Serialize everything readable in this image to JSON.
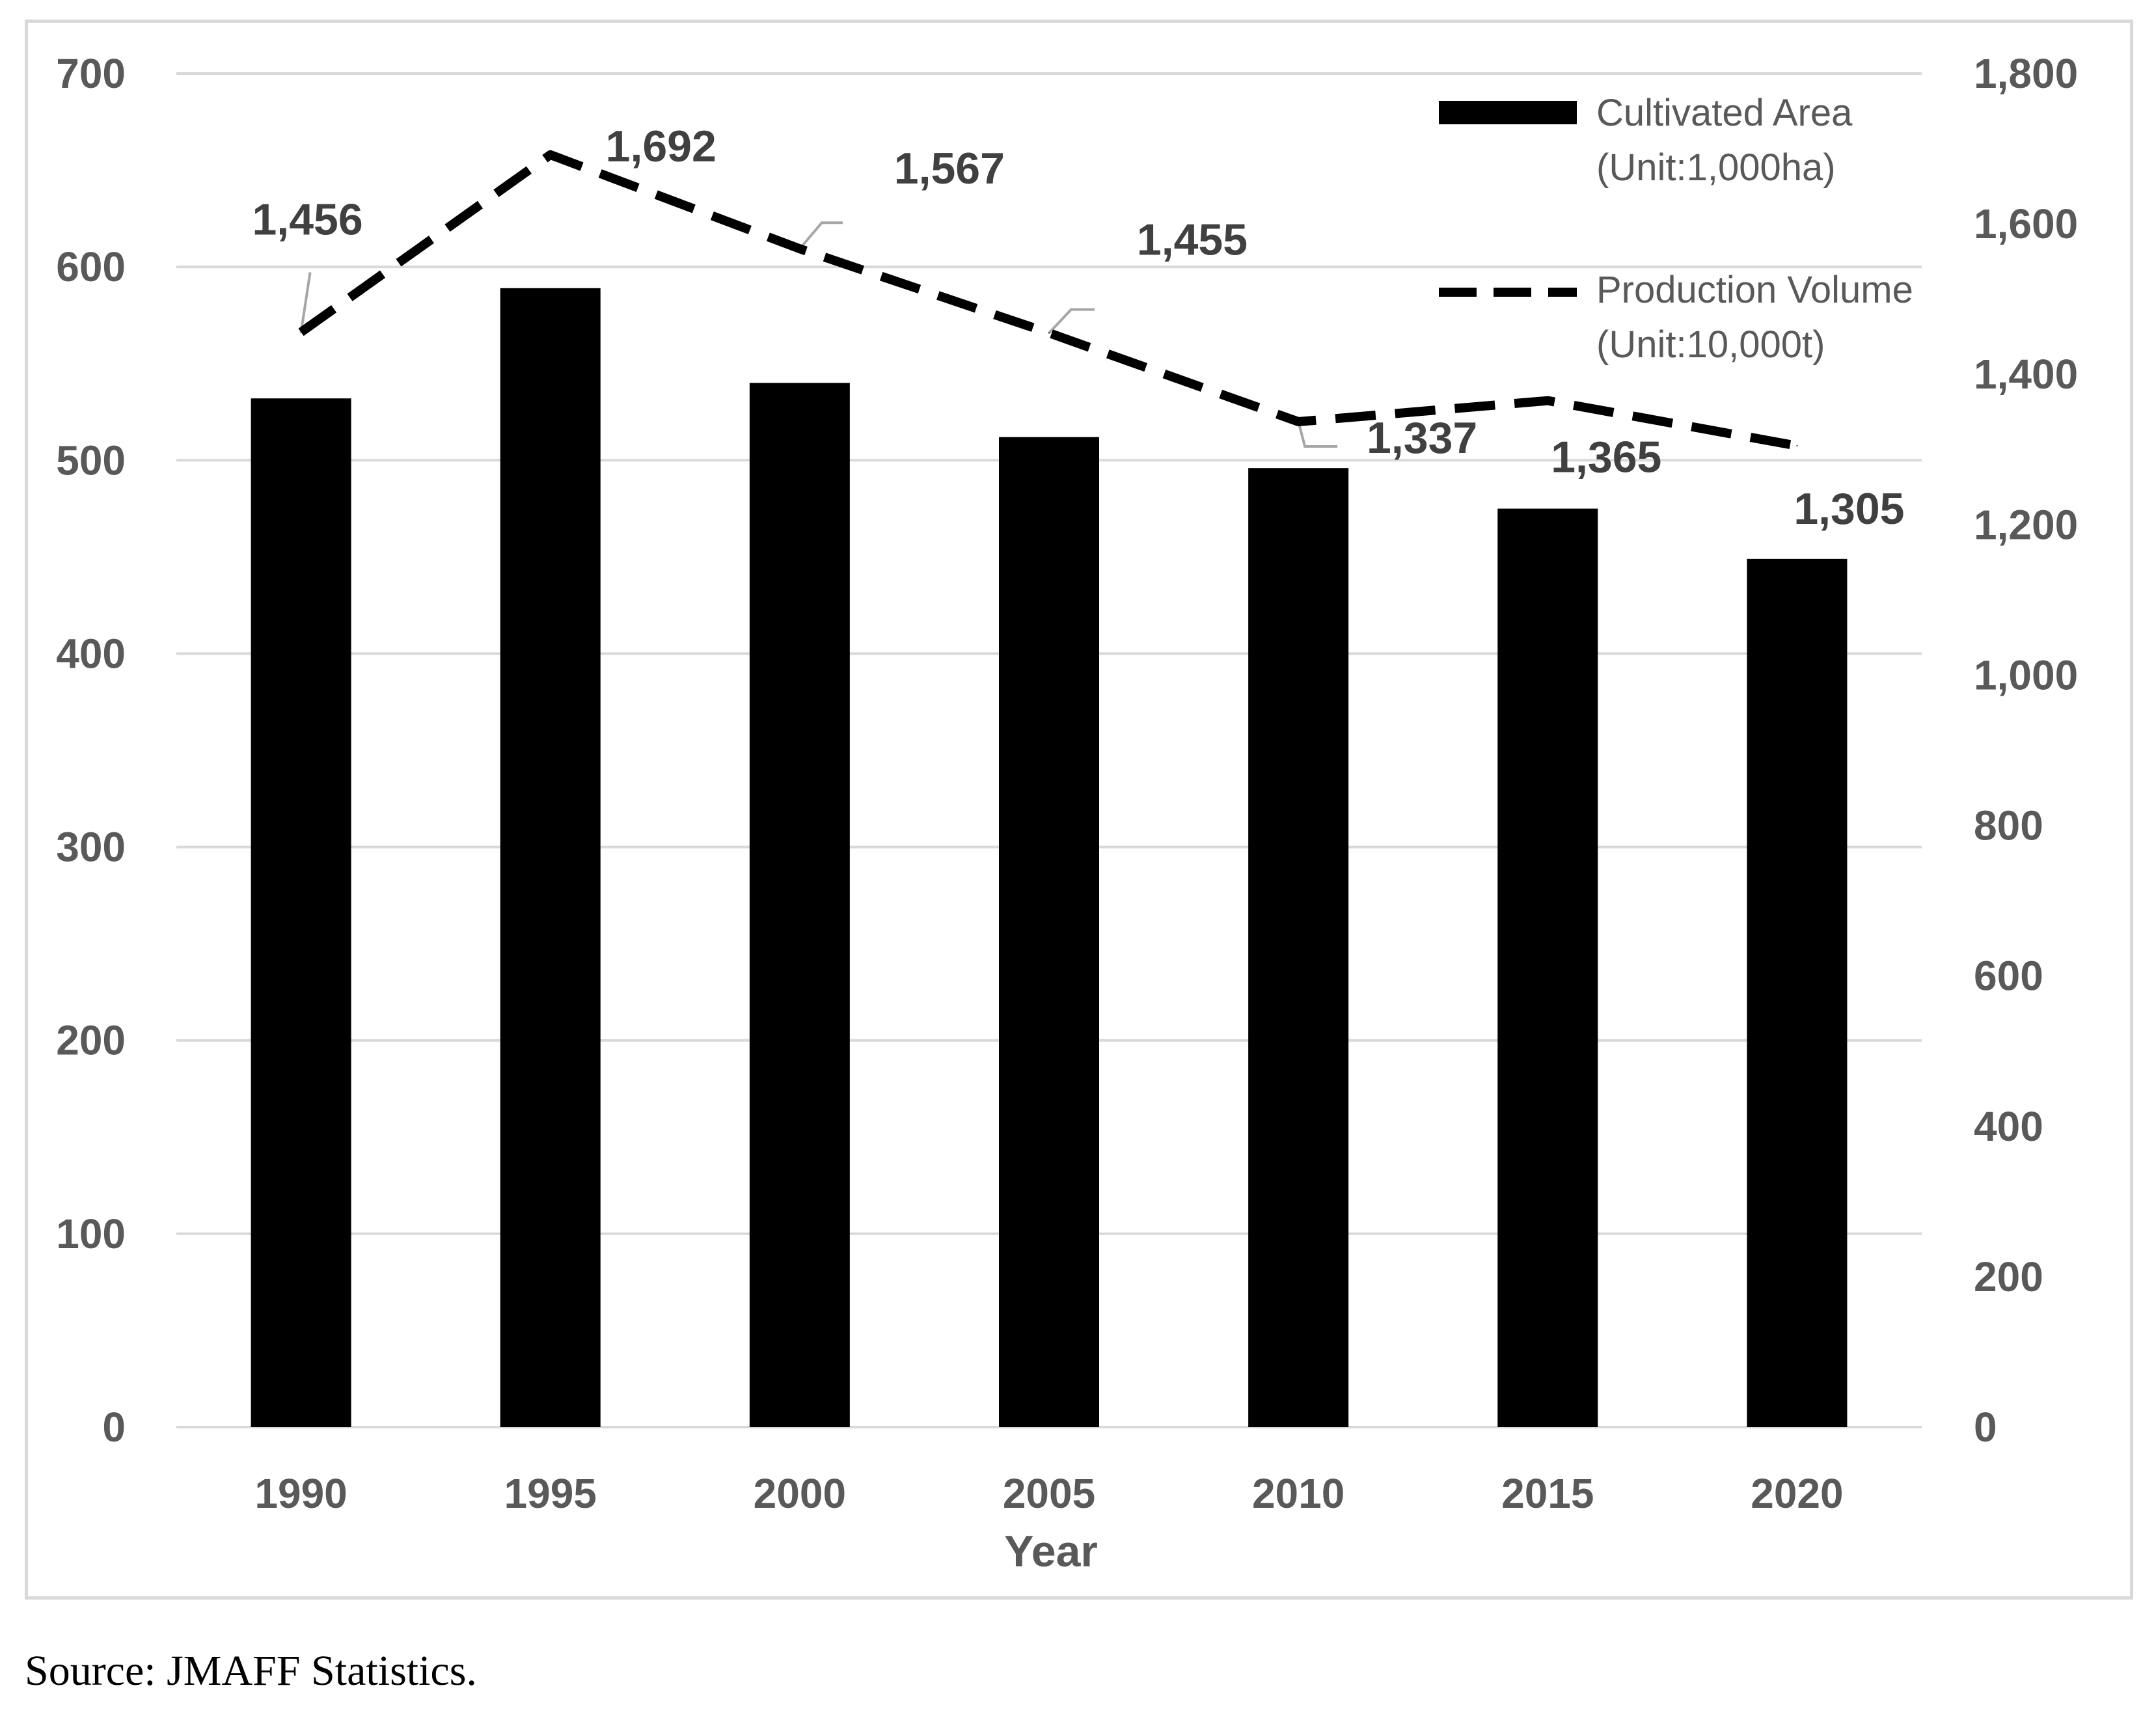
{
  "chart_data": {
    "type": "bar",
    "categories": [
      "1990",
      "1995",
      "2000",
      "2005",
      "2010",
      "2015",
      "2020"
    ],
    "xlabel": "Year",
    "series": [
      {
        "name": "Cultivated Area",
        "unit": "(Unit:1,000ha)",
        "type": "bar",
        "axis": "left",
        "values": [
          532,
          589,
          540,
          512,
          496,
          475,
          449
        ]
      },
      {
        "name": "Production Volume",
        "unit": "(Unit:10,000t)",
        "type": "line",
        "style": "dashed",
        "axis": "right",
        "values": [
          1456,
          1692,
          1567,
          1455,
          1337,
          1365,
          1305
        ],
        "labels": [
          "1,456",
          "1,692",
          "1,567",
          "1,455",
          "1,337",
          "1,365",
          "1,305"
        ]
      }
    ],
    "y_left": {
      "min": 0,
      "max": 700,
      "ticks": [
        "0",
        "100",
        "200",
        "300",
        "400",
        "500",
        "600",
        "700"
      ]
    },
    "y_right": {
      "min": 0,
      "max": 1800,
      "ticks": [
        "0",
        "200",
        "400",
        "600",
        "800",
        "1,000",
        "1,200",
        "1,400",
        "1,600",
        "1,800"
      ]
    },
    "grid": true,
    "legend_position": "top-right",
    "colors": {
      "bar": "#000000",
      "line": "#000000",
      "grid": "#d9d9d9",
      "ticks": "#595959",
      "labels": "#404040"
    }
  },
  "source": "Source: JMAFF Statistics."
}
